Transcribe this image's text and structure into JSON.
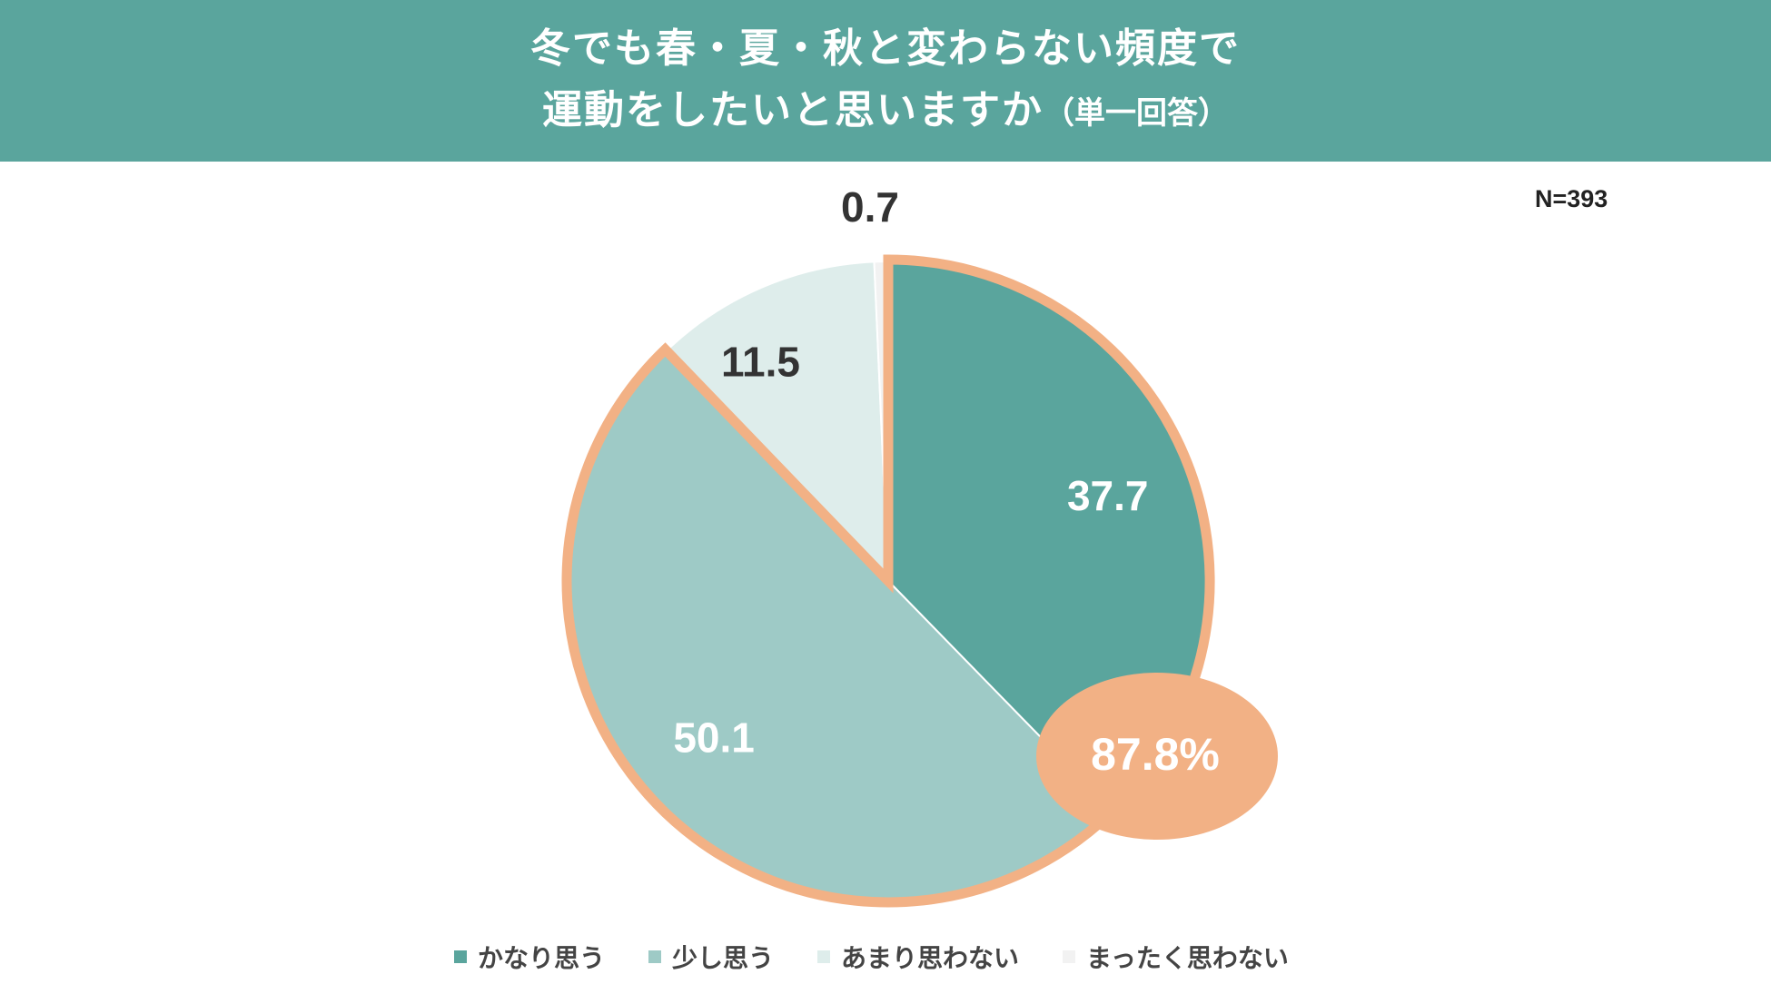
{
  "header": {
    "title_line1": "冬でも春・夏・秋と変わらない頻度で",
    "title_line2": "運動をしたいと思いますか",
    "title_note": "（単一回答）"
  },
  "sample_size": "N=393",
  "chart_data": {
    "type": "pie",
    "title": "冬でも春・夏・秋と変わらない頻度で運動をしたいと思いますか（単一回答）",
    "start": "12 o'clock, clockwise",
    "categories": [
      "かなり思う",
      "少し思う",
      "あまり思わない",
      "まったく思わない"
    ],
    "values": [
      37.7,
      50.1,
      11.5,
      0.7
    ],
    "value_labels": [
      "37.7",
      "50.1",
      "11.5",
      "0.7"
    ],
    "colors": [
      "#5aa59d",
      "#9ecac6",
      "#deedeb",
      "#f2f2f2"
    ],
    "label_colors": [
      "#ffffff",
      "#ffffff",
      "#333333",
      "#333333"
    ],
    "highlight": {
      "categories": [
        "かなり思う",
        "少し思う"
      ],
      "total_label": "87.8%",
      "outline_color": "#f2b185"
    },
    "legend_position": "bottom"
  }
}
